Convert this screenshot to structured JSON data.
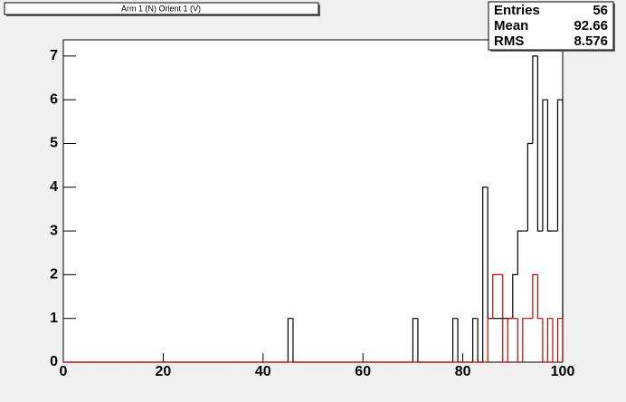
{
  "chart_data": {
    "type": "histogram",
    "title": "Arm 1 (N) Orient 1 (V)",
    "stats": [
      {
        "label": "Entries",
        "value": 56
      },
      {
        "label": "Mean",
        "value": 92.66
      },
      {
        "label": "RMS",
        "value": 8.576
      }
    ],
    "bins": [
      0,
      1,
      2,
      3,
      4,
      5,
      6,
      7,
      8,
      9,
      10,
      11,
      12,
      13,
      14,
      15,
      16,
      17,
      18,
      19,
      20,
      21,
      22,
      23,
      24,
      25,
      26,
      27,
      28,
      29,
      30,
      31,
      32,
      33,
      34,
      35,
      36,
      37,
      38,
      39,
      40,
      41,
      42,
      43,
      44,
      45,
      46,
      47,
      48,
      49,
      50,
      51,
      52,
      53,
      54,
      55,
      56,
      57,
      58,
      59,
      60,
      61,
      62,
      63,
      64,
      65,
      66,
      67,
      68,
      69,
      70,
      71,
      72,
      73,
      74,
      75,
      76,
      77,
      78,
      79,
      80,
      81,
      82,
      83,
      84,
      85,
      86,
      87,
      88,
      89,
      90,
      91,
      92,
      93,
      94,
      95,
      96,
      97,
      98,
      99,
      100
    ],
    "series": [
      {
        "color": "#000000",
        "values": [
          0,
          0,
          0,
          0,
          0,
          0,
          0,
          0,
          0,
          0,
          0,
          0,
          0,
          0,
          0,
          0,
          0,
          0,
          0,
          0,
          0,
          0,
          0,
          0,
          0,
          0,
          0,
          0,
          0,
          0,
          0,
          0,
          0,
          0,
          0,
          0,
          0,
          0,
          0,
          0,
          0,
          0,
          0,
          0,
          0,
          1,
          0,
          0,
          0,
          0,
          0,
          0,
          0,
          0,
          0,
          0,
          0,
          0,
          0,
          0,
          0,
          0,
          0,
          0,
          0,
          0,
          0,
          0,
          0,
          0,
          1,
          0,
          0,
          0,
          0,
          0,
          0,
          0,
          1,
          0,
          0,
          0,
          1,
          0,
          4,
          1,
          1,
          1,
          1,
          1,
          2,
          3,
          3,
          5,
          7,
          3,
          6,
          3,
          3,
          6
        ]
      },
      {
        "color": "#cc0000",
        "values": [
          0,
          0,
          0,
          0,
          0,
          0,
          0,
          0,
          0,
          0,
          0,
          0,
          0,
          0,
          0,
          0,
          0,
          0,
          0,
          0,
          0,
          0,
          0,
          0,
          0,
          0,
          0,
          0,
          0,
          0,
          0,
          0,
          0,
          0,
          0,
          0,
          0,
          0,
          0,
          0,
          0,
          0,
          0,
          0,
          0,
          0,
          0,
          0,
          0,
          0,
          0,
          0,
          0,
          0,
          0,
          0,
          0,
          0,
          0,
          0,
          0,
          0,
          0,
          0,
          0,
          0,
          0,
          0,
          0,
          0,
          0,
          0,
          0,
          0,
          0,
          0,
          0,
          0,
          0,
          0,
          0,
          0,
          0,
          0,
          0,
          1,
          2,
          2,
          0,
          1,
          1,
          0,
          1,
          1,
          2,
          1,
          0,
          1,
          0,
          1
        ]
      }
    ],
    "xlim": [
      0,
      100
    ],
    "xticks": [
      0,
      20,
      40,
      60,
      80,
      100
    ],
    "ylim": [
      0,
      7.37
    ],
    "yticks": [
      0,
      1,
      2,
      3,
      4,
      5,
      6,
      7
    ]
  }
}
